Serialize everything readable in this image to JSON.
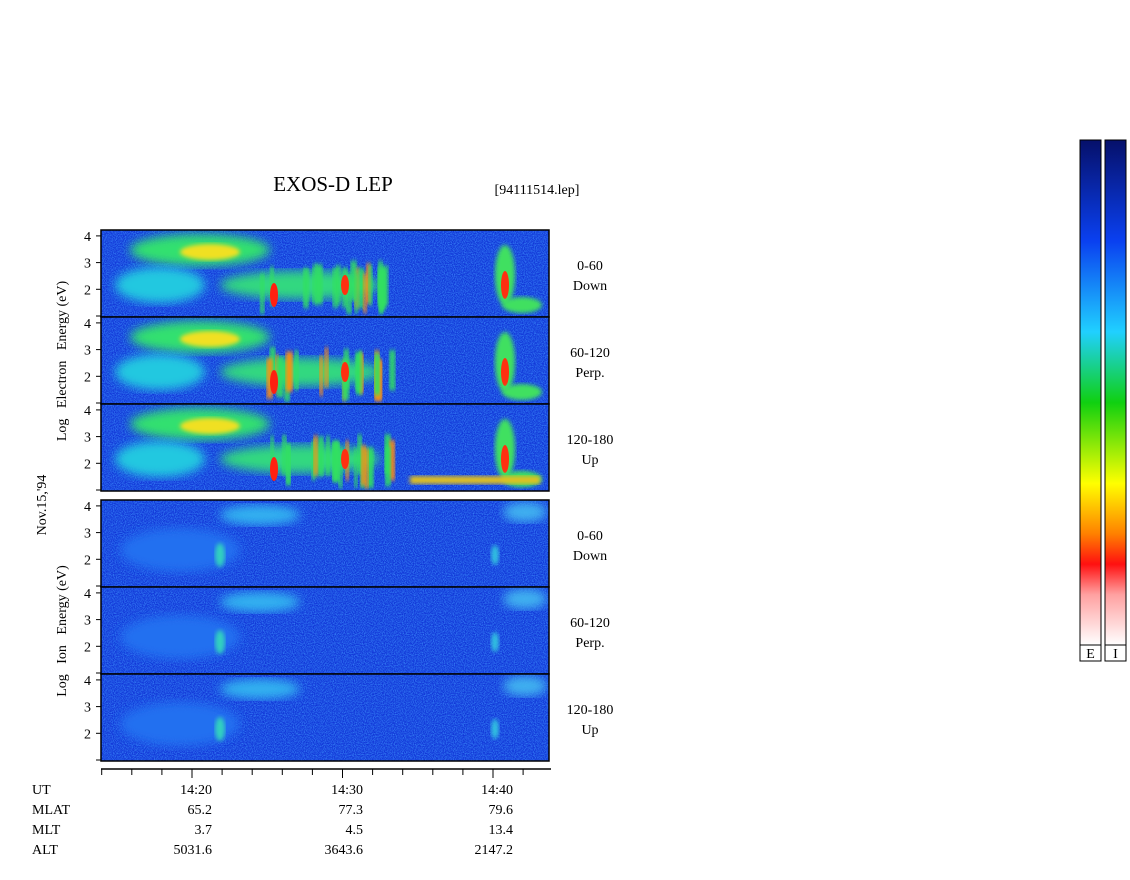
{
  "title": "EXOS-D LEP",
  "file": "[94111514.lep]",
  "date": "Nov.15,'94",
  "electron_axis_label": "Log   Electron   Energy (eV)",
  "ion_axis_label": "Log   Ion   Energy (eV)",
  "yticks": [
    2,
    3,
    4
  ],
  "panels": [
    {
      "angle": "0-60",
      "direction": "Down"
    },
    {
      "angle": "60-120",
      "direction": "Perp."
    },
    {
      "angle": "120-180",
      "direction": "Up"
    },
    {
      "angle": "0-60",
      "direction": "Down"
    },
    {
      "angle": "60-120",
      "direction": "Perp."
    },
    {
      "angle": "120-180",
      "direction": "Up"
    }
  ],
  "orbit": [
    {
      "name": "UT",
      "values": [
        "14:20",
        "14:30",
        "14:40"
      ]
    },
    {
      "name": "MLAT",
      "values": [
        65.2,
        77.3,
        79.6
      ]
    },
    {
      "name": "MLT",
      "values": [
        3.7,
        4.5,
        13.4
      ]
    },
    {
      "name": "ALT",
      "values": [
        5031.6,
        3643.6,
        2147.2
      ]
    }
  ],
  "colorbars": [
    "E",
    "I"
  ]
}
